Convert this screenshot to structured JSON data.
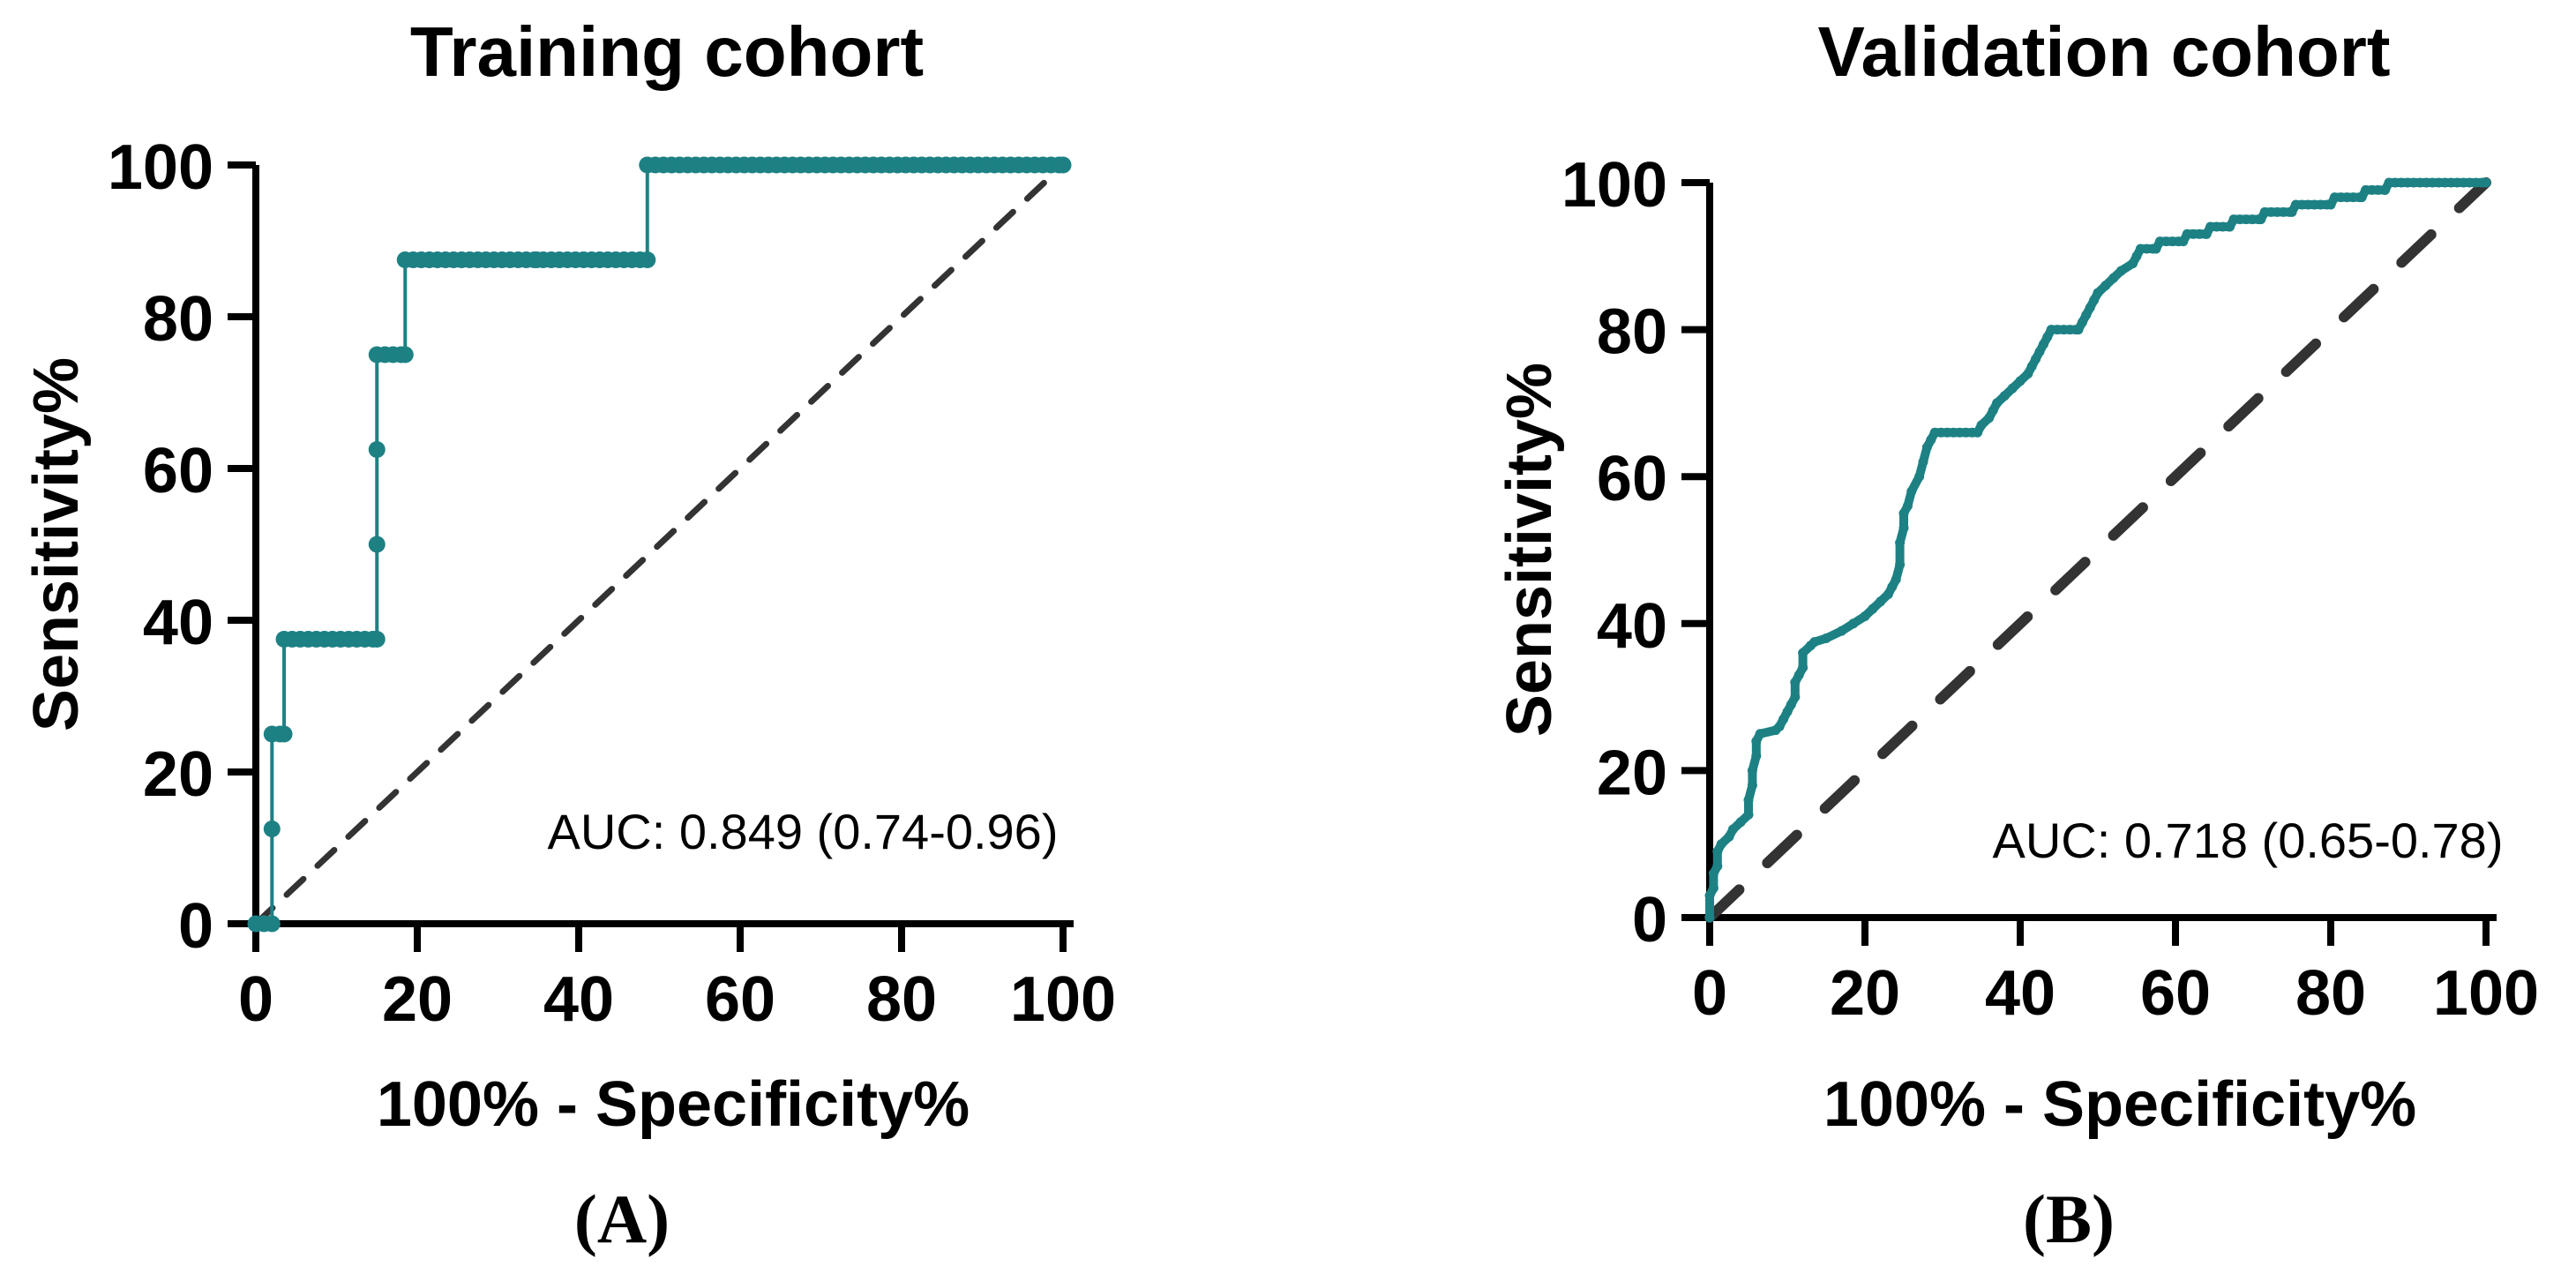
{
  "figure": {
    "background": "#ffffff",
    "description": "Two ROC curve panels"
  },
  "chart_data": [
    {
      "type": "line",
      "panel_label": "(A)",
      "title": "Training cohort",
      "xlabel": "100% - Specificity%",
      "ylabel": "Sensitivity%",
      "annotation": "AUC: 0.849 (0.74-0.96)",
      "auc": 0.849,
      "auc_ci": [
        0.74,
        0.96
      ],
      "xlim": [
        0,
        100
      ],
      "ylim": [
        0,
        100
      ],
      "x_ticks": [
        0,
        20,
        40,
        60,
        80,
        100
      ],
      "y_ticks": [
        0,
        20,
        40,
        60,
        80,
        100
      ],
      "grid": false,
      "legend": "none",
      "colors": {
        "curve": "#1d8184",
        "diagonal": "#333333",
        "axis": "#000000",
        "text": "#000000"
      },
      "diagonal": [
        [
          0,
          0
        ],
        [
          100,
          100
        ]
      ],
      "roc_segments": [
        [
          [
            0,
            0
          ],
          [
            2,
            0
          ],
          [
            2,
            12.5
          ],
          [
            2,
            25
          ],
          [
            3.5,
            25
          ],
          [
            3.5,
            37.5
          ],
          [
            15,
            37.5
          ],
          [
            15,
            50
          ],
          [
            15,
            62.5
          ],
          [
            15,
            75
          ],
          [
            18.5,
            75
          ],
          [
            18.5,
            87.5
          ],
          [
            34.8,
            87.5
          ]
        ],
        [
          [
            35.6,
            87.5
          ],
          [
            48.5,
            87.5
          ],
          [
            48.5,
            100
          ],
          [
            100,
            100
          ]
        ]
      ]
    },
    {
      "type": "line",
      "panel_label": "(B)",
      "title": "Validation cohort",
      "xlabel": "100% - Specificity%",
      "ylabel": "Sensitivity%",
      "annotation": "AUC: 0.718 (0.65-0.78)",
      "auc": 0.718,
      "auc_ci": [
        0.65,
        0.78
      ],
      "xlim": [
        0,
        100
      ],
      "ylim": [
        0,
        100
      ],
      "x_ticks": [
        0,
        20,
        40,
        60,
        80,
        100
      ],
      "y_ticks": [
        0,
        20,
        40,
        60,
        80,
        100
      ],
      "grid": false,
      "legend": "none",
      "colors": {
        "curve": "#1d8184",
        "diagonal": "#333333",
        "axis": "#000000",
        "text": "#000000"
      },
      "diagonal": [
        [
          0,
          0
        ],
        [
          100,
          100
        ]
      ],
      "roc_segments": [
        [
          [
            0,
            0
          ],
          [
            0,
            3
          ],
          [
            0.5,
            4
          ],
          [
            0.5,
            6
          ],
          [
            1,
            7
          ],
          [
            1,
            9
          ],
          [
            1.5,
            10
          ],
          [
            2.5,
            11
          ],
          [
            3,
            12
          ],
          [
            4,
            13
          ],
          [
            5,
            14
          ],
          [
            5,
            16
          ],
          [
            5.5,
            18
          ],
          [
            5.5,
            20
          ],
          [
            6,
            22
          ],
          [
            6,
            24
          ],
          [
            6.5,
            25
          ],
          [
            8.5,
            25.5
          ],
          [
            9,
            26
          ],
          [
            9.5,
            27
          ],
          [
            10,
            28
          ],
          [
            10.5,
            29
          ],
          [
            11,
            30
          ],
          [
            11,
            32
          ],
          [
            11.5,
            33
          ],
          [
            12,
            34
          ],
          [
            12,
            36
          ],
          [
            13,
            37
          ],
          [
            13.5,
            37.5
          ],
          [
            15,
            38
          ],
          [
            17,
            39
          ],
          [
            18.5,
            40
          ],
          [
            20,
            41
          ],
          [
            21,
            42
          ],
          [
            22,
            43
          ],
          [
            23,
            44
          ],
          [
            23.5,
            45
          ],
          [
            24,
            46
          ],
          [
            24.5,
            48
          ],
          [
            24.5,
            51
          ],
          [
            25,
            53
          ],
          [
            25,
            55
          ],
          [
            25.5,
            56
          ],
          [
            26,
            58
          ],
          [
            27,
            60
          ],
          [
            27.5,
            62
          ],
          [
            28,
            64
          ],
          [
            28.5,
            65
          ],
          [
            29,
            66
          ],
          [
            34.5,
            66
          ],
          [
            35,
            67
          ],
          [
            36,
            68
          ],
          [
            36.5,
            69
          ],
          [
            37,
            70
          ],
          [
            38,
            71
          ],
          [
            39,
            72
          ],
          [
            40,
            73
          ],
          [
            41,
            74
          ],
          [
            41.5,
            75
          ],
          [
            42,
            76
          ],
          [
            42.5,
            77
          ],
          [
            43,
            78
          ],
          [
            43.5,
            79
          ],
          [
            44,
            80
          ],
          [
            47.5,
            80
          ],
          [
            48,
            81
          ],
          [
            48.5,
            82
          ],
          [
            49,
            83
          ],
          [
            49.5,
            84
          ],
          [
            50,
            85
          ],
          [
            51,
            86
          ],
          [
            52,
            87
          ],
          [
            53,
            88
          ],
          [
            54.5,
            89
          ],
          [
            55,
            90
          ],
          [
            55.5,
            91
          ],
          [
            57.5,
            91
          ],
          [
            58,
            92
          ],
          [
            61,
            92
          ],
          [
            61.5,
            93
          ],
          [
            64,
            93
          ],
          [
            64.5,
            94
          ],
          [
            67,
            94
          ],
          [
            67.5,
            95
          ],
          [
            71,
            95
          ],
          [
            71.5,
            96
          ],
          [
            75,
            96
          ],
          [
            75.5,
            97
          ],
          [
            80,
            97
          ],
          [
            80.5,
            98
          ],
          [
            84,
            98
          ],
          [
            84.5,
            99
          ],
          [
            87,
            99
          ],
          [
            87.5,
            100
          ],
          [
            100,
            100
          ]
        ]
      ]
    }
  ]
}
